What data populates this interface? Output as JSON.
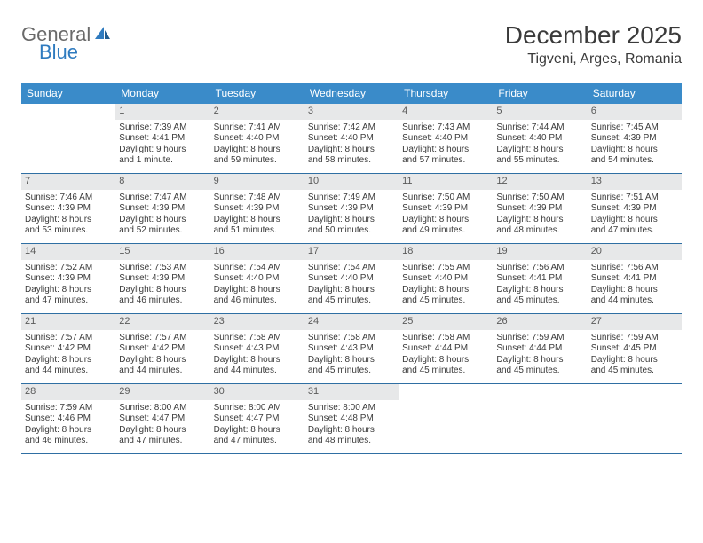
{
  "logo": {
    "part1": "General",
    "part2": "Blue"
  },
  "header": {
    "month_title": "December 2025",
    "location": "Tigveni, Arges, Romania"
  },
  "colors": {
    "header_bg": "#3a8bc9",
    "header_text": "#ffffff",
    "daynum_bg": "#e7e8e9",
    "row_border": "#2f6fa3",
    "logo_gray": "#6a6a6a",
    "logo_blue": "#2f7bbf"
  },
  "weekdays": [
    "Sunday",
    "Monday",
    "Tuesday",
    "Wednesday",
    "Thursday",
    "Friday",
    "Saturday"
  ],
  "weeks": [
    [
      null,
      {
        "n": "1",
        "sr": "Sunrise: 7:39 AM",
        "ss": "Sunset: 4:41 PM",
        "d1": "Daylight: 9 hours",
        "d2": "and 1 minute."
      },
      {
        "n": "2",
        "sr": "Sunrise: 7:41 AM",
        "ss": "Sunset: 4:40 PM",
        "d1": "Daylight: 8 hours",
        "d2": "and 59 minutes."
      },
      {
        "n": "3",
        "sr": "Sunrise: 7:42 AM",
        "ss": "Sunset: 4:40 PM",
        "d1": "Daylight: 8 hours",
        "d2": "and 58 minutes."
      },
      {
        "n": "4",
        "sr": "Sunrise: 7:43 AM",
        "ss": "Sunset: 4:40 PM",
        "d1": "Daylight: 8 hours",
        "d2": "and 57 minutes."
      },
      {
        "n": "5",
        "sr": "Sunrise: 7:44 AM",
        "ss": "Sunset: 4:40 PM",
        "d1": "Daylight: 8 hours",
        "d2": "and 55 minutes."
      },
      {
        "n": "6",
        "sr": "Sunrise: 7:45 AM",
        "ss": "Sunset: 4:39 PM",
        "d1": "Daylight: 8 hours",
        "d2": "and 54 minutes."
      }
    ],
    [
      {
        "n": "7",
        "sr": "Sunrise: 7:46 AM",
        "ss": "Sunset: 4:39 PM",
        "d1": "Daylight: 8 hours",
        "d2": "and 53 minutes."
      },
      {
        "n": "8",
        "sr": "Sunrise: 7:47 AM",
        "ss": "Sunset: 4:39 PM",
        "d1": "Daylight: 8 hours",
        "d2": "and 52 minutes."
      },
      {
        "n": "9",
        "sr": "Sunrise: 7:48 AM",
        "ss": "Sunset: 4:39 PM",
        "d1": "Daylight: 8 hours",
        "d2": "and 51 minutes."
      },
      {
        "n": "10",
        "sr": "Sunrise: 7:49 AM",
        "ss": "Sunset: 4:39 PM",
        "d1": "Daylight: 8 hours",
        "d2": "and 50 minutes."
      },
      {
        "n": "11",
        "sr": "Sunrise: 7:50 AM",
        "ss": "Sunset: 4:39 PM",
        "d1": "Daylight: 8 hours",
        "d2": "and 49 minutes."
      },
      {
        "n": "12",
        "sr": "Sunrise: 7:50 AM",
        "ss": "Sunset: 4:39 PM",
        "d1": "Daylight: 8 hours",
        "d2": "and 48 minutes."
      },
      {
        "n": "13",
        "sr": "Sunrise: 7:51 AM",
        "ss": "Sunset: 4:39 PM",
        "d1": "Daylight: 8 hours",
        "d2": "and 47 minutes."
      }
    ],
    [
      {
        "n": "14",
        "sr": "Sunrise: 7:52 AM",
        "ss": "Sunset: 4:39 PM",
        "d1": "Daylight: 8 hours",
        "d2": "and 47 minutes."
      },
      {
        "n": "15",
        "sr": "Sunrise: 7:53 AM",
        "ss": "Sunset: 4:39 PM",
        "d1": "Daylight: 8 hours",
        "d2": "and 46 minutes."
      },
      {
        "n": "16",
        "sr": "Sunrise: 7:54 AM",
        "ss": "Sunset: 4:40 PM",
        "d1": "Daylight: 8 hours",
        "d2": "and 46 minutes."
      },
      {
        "n": "17",
        "sr": "Sunrise: 7:54 AM",
        "ss": "Sunset: 4:40 PM",
        "d1": "Daylight: 8 hours",
        "d2": "and 45 minutes."
      },
      {
        "n": "18",
        "sr": "Sunrise: 7:55 AM",
        "ss": "Sunset: 4:40 PM",
        "d1": "Daylight: 8 hours",
        "d2": "and 45 minutes."
      },
      {
        "n": "19",
        "sr": "Sunrise: 7:56 AM",
        "ss": "Sunset: 4:41 PM",
        "d1": "Daylight: 8 hours",
        "d2": "and 45 minutes."
      },
      {
        "n": "20",
        "sr": "Sunrise: 7:56 AM",
        "ss": "Sunset: 4:41 PM",
        "d1": "Daylight: 8 hours",
        "d2": "and 44 minutes."
      }
    ],
    [
      {
        "n": "21",
        "sr": "Sunrise: 7:57 AM",
        "ss": "Sunset: 4:42 PM",
        "d1": "Daylight: 8 hours",
        "d2": "and 44 minutes."
      },
      {
        "n": "22",
        "sr": "Sunrise: 7:57 AM",
        "ss": "Sunset: 4:42 PM",
        "d1": "Daylight: 8 hours",
        "d2": "and 44 minutes."
      },
      {
        "n": "23",
        "sr": "Sunrise: 7:58 AM",
        "ss": "Sunset: 4:43 PM",
        "d1": "Daylight: 8 hours",
        "d2": "and 44 minutes."
      },
      {
        "n": "24",
        "sr": "Sunrise: 7:58 AM",
        "ss": "Sunset: 4:43 PM",
        "d1": "Daylight: 8 hours",
        "d2": "and 45 minutes."
      },
      {
        "n": "25",
        "sr": "Sunrise: 7:58 AM",
        "ss": "Sunset: 4:44 PM",
        "d1": "Daylight: 8 hours",
        "d2": "and 45 minutes."
      },
      {
        "n": "26",
        "sr": "Sunrise: 7:59 AM",
        "ss": "Sunset: 4:44 PM",
        "d1": "Daylight: 8 hours",
        "d2": "and 45 minutes."
      },
      {
        "n": "27",
        "sr": "Sunrise: 7:59 AM",
        "ss": "Sunset: 4:45 PM",
        "d1": "Daylight: 8 hours",
        "d2": "and 45 minutes."
      }
    ],
    [
      {
        "n": "28",
        "sr": "Sunrise: 7:59 AM",
        "ss": "Sunset: 4:46 PM",
        "d1": "Daylight: 8 hours",
        "d2": "and 46 minutes."
      },
      {
        "n": "29",
        "sr": "Sunrise: 8:00 AM",
        "ss": "Sunset: 4:47 PM",
        "d1": "Daylight: 8 hours",
        "d2": "and 47 minutes."
      },
      {
        "n": "30",
        "sr": "Sunrise: 8:00 AM",
        "ss": "Sunset: 4:47 PM",
        "d1": "Daylight: 8 hours",
        "d2": "and 47 minutes."
      },
      {
        "n": "31",
        "sr": "Sunrise: 8:00 AM",
        "ss": "Sunset: 4:48 PM",
        "d1": "Daylight: 8 hours",
        "d2": "and 48 minutes."
      },
      null,
      null,
      null
    ]
  ]
}
